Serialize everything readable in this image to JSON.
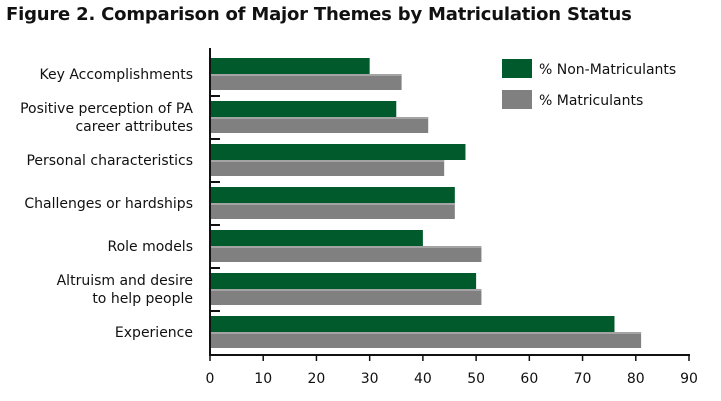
{
  "chart_data": {
    "type": "bar",
    "orientation": "horizontal",
    "title": "Figure 2. Comparison of Major Themes by Matriculation Status",
    "categories": [
      [
        "Key Accomplishments"
      ],
      [
        "Positive perception of PA",
        "career attributes"
      ],
      [
        "Personal characteristics"
      ],
      [
        "Challenges or hardships"
      ],
      [
        "Role models"
      ],
      [
        "Altruism and desire",
        "to help people"
      ],
      [
        "Experience"
      ]
    ],
    "series": [
      {
        "name": "% Non-Matriculants",
        "color": "#005a2b",
        "values": [
          30,
          35,
          48,
          46,
          40,
          50,
          76
        ]
      },
      {
        "name": "% Matriculants",
        "color": "#808080",
        "values": [
          36,
          41,
          44,
          46,
          51,
          51,
          81
        ]
      }
    ],
    "xlim": [
      0,
      90
    ],
    "xticks": [
      0,
      10,
      20,
      30,
      40,
      50,
      60,
      70,
      80,
      90
    ],
    "grid": false,
    "legend_position": "top-right"
  }
}
